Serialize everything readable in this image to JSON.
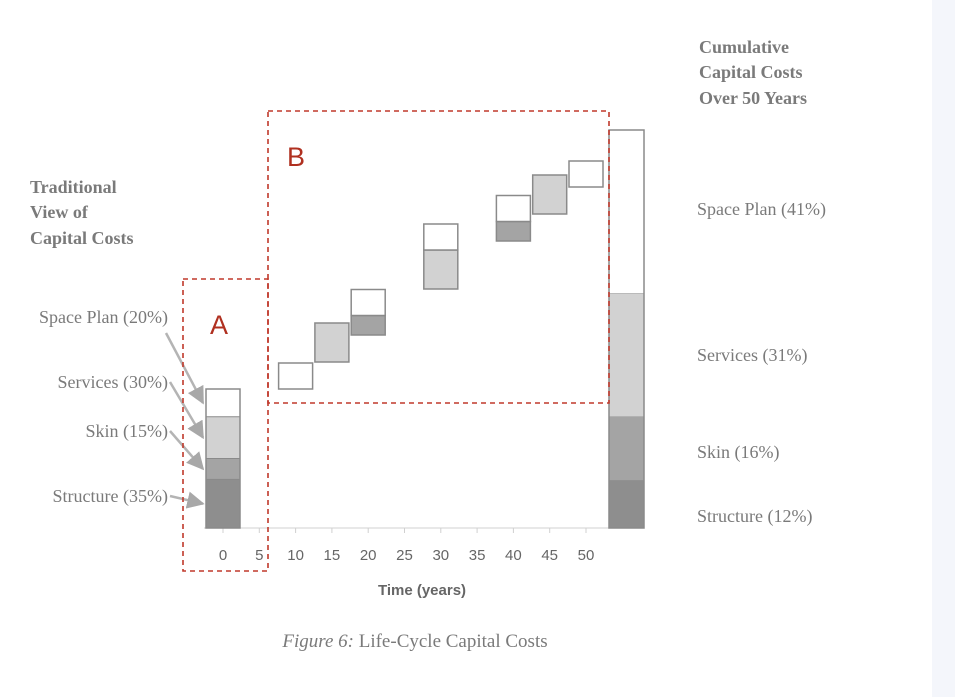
{
  "chart_data": {
    "type": "bar",
    "xlabel": "Time (years)",
    "x_ticks": [
      "0",
      "5",
      "10",
      "15",
      "20",
      "25",
      "30",
      "35",
      "40",
      "45",
      "50"
    ],
    "ylim": [
      0,
      100
    ],
    "colors": {
      "space_plan": "#ffffff",
      "services": "#d2d2d2",
      "skin": "#a4a4a4",
      "structure": "#8e8e8e",
      "outline": "#8a8a8a"
    },
    "traditional": {
      "title": "Traditional View of Capital Costs",
      "title_lines": [
        "Traditional",
        "View of",
        "Capital Costs"
      ],
      "x": 0,
      "segments": [
        {
          "label": "Space Plan (20%)",
          "component": "space_plan",
          "value": 20
        },
        {
          "label": "Services (30%)",
          "component": "services",
          "value": 30
        },
        {
          "label": "Skin (15%)",
          "component": "skin",
          "value": 15
        },
        {
          "label": "Structure (35%)",
          "component": "structure",
          "value": 35
        }
      ]
    },
    "renewals": [
      {
        "year": 10,
        "parts": [
          {
            "component": "space_plan",
            "value": 20
          }
        ]
      },
      {
        "year": 15,
        "parts": [
          {
            "component": "services",
            "value": 30
          }
        ]
      },
      {
        "year": 20,
        "parts": [
          {
            "component": "skin",
            "value": 15
          },
          {
            "component": "space_plan",
            "value": 20
          }
        ]
      },
      {
        "year": 30,
        "parts": [
          {
            "component": "services",
            "value": 30
          },
          {
            "component": "space_plan",
            "value": 20
          }
        ]
      },
      {
        "year": 40,
        "parts": [
          {
            "component": "skin",
            "value": 15
          },
          {
            "component": "space_plan",
            "value": 20
          }
        ]
      },
      {
        "year": 45,
        "parts": [
          {
            "component": "services",
            "value": 30
          }
        ]
      },
      {
        "year": 50,
        "parts": [
          {
            "component": "space_plan",
            "value": 20
          }
        ]
      }
    ],
    "cumulative": {
      "title": "Cumulative Capital Costs Over 50 Years",
      "title_lines": [
        "Cumulative",
        "Capital Costs",
        "Over 50 Years"
      ],
      "segments": [
        {
          "label": "Space Plan (41%)",
          "component": "space_plan",
          "value": 41
        },
        {
          "label": "Services (31%)",
          "component": "services",
          "value": 31
        },
        {
          "label": "Skin (16%)",
          "component": "skin",
          "value": 16
        },
        {
          "label": "Structure (12%)",
          "component": "structure",
          "value": 12
        }
      ]
    },
    "regions": [
      {
        "label": "A",
        "x_range": [
          0,
          5
        ]
      },
      {
        "label": "B",
        "x_range": [
          10,
          50
        ]
      }
    ]
  },
  "caption": {
    "prefix": "Figure 6:",
    "text": " Life-Cycle Capital Costs"
  }
}
